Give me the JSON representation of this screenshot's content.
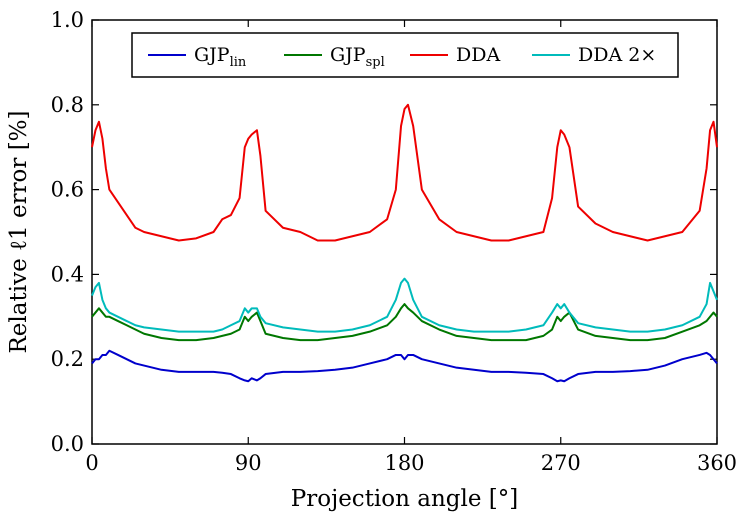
{
  "chart_data": {
    "type": "line",
    "title": "",
    "xlabel": "Projection angle [°]",
    "ylabel": "Relative ℓ1 error [%]",
    "xlim": [
      0,
      360
    ],
    "ylim": [
      0.0,
      1.0
    ],
    "xticks": [
      0,
      90,
      180,
      270,
      360
    ],
    "xtick_labels": [
      "0",
      "90",
      "180",
      "270",
      "360"
    ],
    "yticks": [
      0.0,
      0.2,
      0.4,
      0.6,
      0.8,
      1.0
    ],
    "ytick_labels": [
      "0.0",
      "0.2",
      "0.4",
      "0.6",
      "0.8",
      "1.0"
    ],
    "grid": false,
    "legend_position": "top",
    "x": [
      0,
      2,
      4,
      6,
      8,
      10,
      15,
      20,
      25,
      30,
      40,
      50,
      60,
      70,
      75,
      80,
      85,
      88,
      90,
      92,
      95,
      97,
      100,
      110,
      120,
      130,
      140,
      150,
      160,
      170,
      175,
      178,
      180,
      182,
      185,
      190,
      200,
      210,
      220,
      230,
      240,
      250,
      260,
      265,
      268,
      270,
      272,
      275,
      280,
      290,
      300,
      310,
      320,
      330,
      340,
      350,
      354,
      356,
      358,
      360
    ],
    "series": [
      {
        "name": "GJP",
        "subscript": "lin",
        "color": "#0000cc",
        "values": [
          0.19,
          0.2,
          0.2,
          0.21,
          0.21,
          0.22,
          0.21,
          0.2,
          0.19,
          0.185,
          0.175,
          0.17,
          0.17,
          0.17,
          0.168,
          0.165,
          0.155,
          0.15,
          0.148,
          0.155,
          0.15,
          0.155,
          0.165,
          0.17,
          0.17,
          0.172,
          0.175,
          0.18,
          0.19,
          0.2,
          0.21,
          0.21,
          0.2,
          0.21,
          0.21,
          0.2,
          0.19,
          0.18,
          0.175,
          0.17,
          0.17,
          0.168,
          0.165,
          0.155,
          0.148,
          0.15,
          0.148,
          0.155,
          0.165,
          0.17,
          0.17,
          0.172,
          0.175,
          0.185,
          0.2,
          0.21,
          0.215,
          0.21,
          0.2,
          0.19
        ]
      },
      {
        "name": "GJP",
        "subscript": "spl",
        "color": "#007700",
        "values": [
          0.3,
          0.31,
          0.32,
          0.31,
          0.3,
          0.3,
          0.29,
          0.28,
          0.27,
          0.26,
          0.25,
          0.245,
          0.245,
          0.25,
          0.255,
          0.26,
          0.27,
          0.3,
          0.29,
          0.3,
          0.31,
          0.29,
          0.26,
          0.25,
          0.245,
          0.245,
          0.25,
          0.255,
          0.265,
          0.28,
          0.3,
          0.32,
          0.33,
          0.32,
          0.31,
          0.29,
          0.27,
          0.255,
          0.25,
          0.245,
          0.245,
          0.245,
          0.255,
          0.27,
          0.3,
          0.29,
          0.3,
          0.31,
          0.27,
          0.255,
          0.25,
          0.245,
          0.245,
          0.25,
          0.265,
          0.28,
          0.29,
          0.3,
          0.31,
          0.3
        ]
      },
      {
        "name": "DDA",
        "subscript": "",
        "color": "#ee0000",
        "values": [
          0.7,
          0.74,
          0.76,
          0.72,
          0.65,
          0.6,
          0.57,
          0.54,
          0.51,
          0.5,
          0.49,
          0.48,
          0.485,
          0.5,
          0.53,
          0.54,
          0.58,
          0.7,
          0.72,
          0.73,
          0.74,
          0.68,
          0.55,
          0.51,
          0.5,
          0.48,
          0.48,
          0.49,
          0.5,
          0.53,
          0.6,
          0.75,
          0.79,
          0.8,
          0.75,
          0.6,
          0.53,
          0.5,
          0.49,
          0.48,
          0.48,
          0.49,
          0.5,
          0.58,
          0.7,
          0.74,
          0.73,
          0.7,
          0.56,
          0.52,
          0.5,
          0.49,
          0.48,
          0.49,
          0.5,
          0.55,
          0.65,
          0.74,
          0.76,
          0.7
        ]
      },
      {
        "name": "DDA 2×",
        "subscript": "",
        "color": "#00bbbb",
        "values": [
          0.35,
          0.37,
          0.38,
          0.34,
          0.32,
          0.31,
          0.3,
          0.29,
          0.28,
          0.275,
          0.27,
          0.265,
          0.265,
          0.265,
          0.27,
          0.28,
          0.29,
          0.32,
          0.31,
          0.32,
          0.32,
          0.3,
          0.285,
          0.275,
          0.27,
          0.265,
          0.265,
          0.27,
          0.28,
          0.3,
          0.34,
          0.38,
          0.39,
          0.38,
          0.34,
          0.3,
          0.28,
          0.27,
          0.265,
          0.265,
          0.265,
          0.27,
          0.28,
          0.31,
          0.33,
          0.32,
          0.33,
          0.31,
          0.285,
          0.275,
          0.27,
          0.265,
          0.265,
          0.27,
          0.28,
          0.3,
          0.33,
          0.38,
          0.36,
          0.34
        ]
      }
    ]
  }
}
